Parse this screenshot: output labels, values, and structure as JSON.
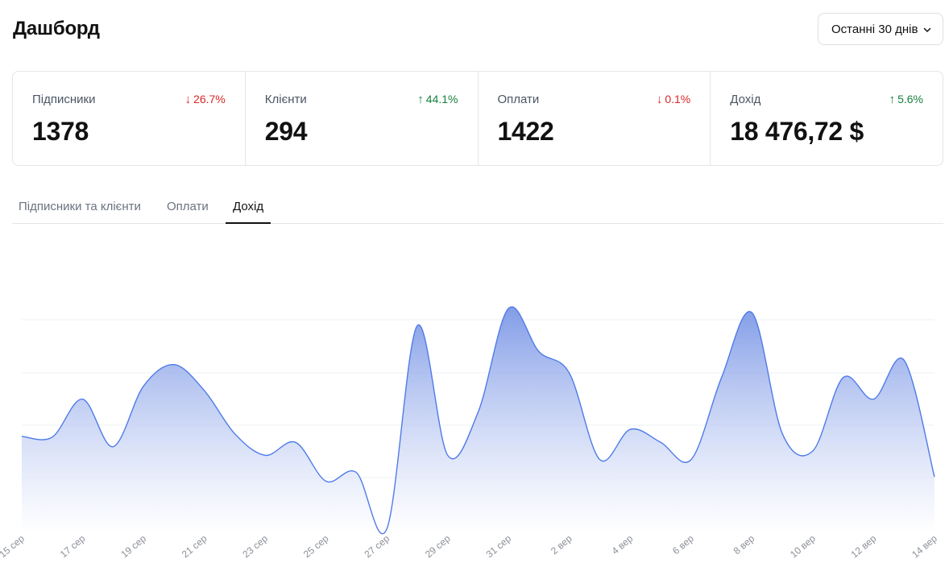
{
  "header": {
    "title": "Дашборд",
    "range_label": "Останні 30 днів"
  },
  "stats": [
    {
      "label": "Підписники",
      "value": "1378",
      "change": "26.7%",
      "direction": "down"
    },
    {
      "label": "Клієнти",
      "value": "294",
      "change": "44.1%",
      "direction": "up"
    },
    {
      "label": "Оплати",
      "value": "1422",
      "change": "0.1%",
      "direction": "down"
    },
    {
      "label": "Дохід",
      "value": "18 476,72 $",
      "change": "5.6%",
      "direction": "up"
    }
  ],
  "tabs": [
    {
      "label": "Підписники та клієнти",
      "active": false
    },
    {
      "label": "Оплати",
      "active": false
    },
    {
      "label": "Дохід",
      "active": true
    }
  ],
  "colors": {
    "line": "#4f7be8",
    "fill_top": "#7b97e6",
    "down": "#dc2626",
    "up": "#15803d"
  },
  "chart_data": {
    "type": "area",
    "x": [
      "15 сер",
      "16 сер",
      "17 сер",
      "18 сер",
      "19 сер",
      "20 сер",
      "21 сер",
      "22 сер",
      "23 сер",
      "24 сер",
      "25 сер",
      "26 сер",
      "27 сер",
      "28 сер",
      "29 сер",
      "30 сер",
      "31 сер",
      "1 вер",
      "2 вер",
      "3 вер",
      "4 вер",
      "5 вер",
      "6 вер",
      "7 вер",
      "8 вер",
      "9 вер",
      "10 вер",
      "11 вер",
      "12 вер",
      "13 вер",
      "14 вер"
    ],
    "tick_labels": [
      "15 сер",
      "17 сер",
      "19 сер",
      "21 сер",
      "23 сер",
      "25 сер",
      "27 сер",
      "29 сер",
      "31 сер",
      "2 вер",
      "4 вер",
      "6 вер",
      "8 вер",
      "10 вер",
      "12 вер",
      "14 вер"
    ],
    "values": [
      1.44,
      1.42,
      2.3,
      1.2,
      2.6,
      3.1,
      2.5,
      1.5,
      1.0,
      1.3,
      0.4,
      0.6,
      -0.7,
      4.0,
      1.0,
      2.0,
      4.4,
      3.4,
      2.9,
      0.9,
      1.6,
      1.3,
      0.9,
      2.8,
      4.3,
      1.5,
      1.1,
      2.8,
      2.3,
      3.2,
      0.5
    ],
    "ylim": [
      -0.8,
      5.2
    ],
    "grid": "horizontal",
    "legend": "none"
  }
}
